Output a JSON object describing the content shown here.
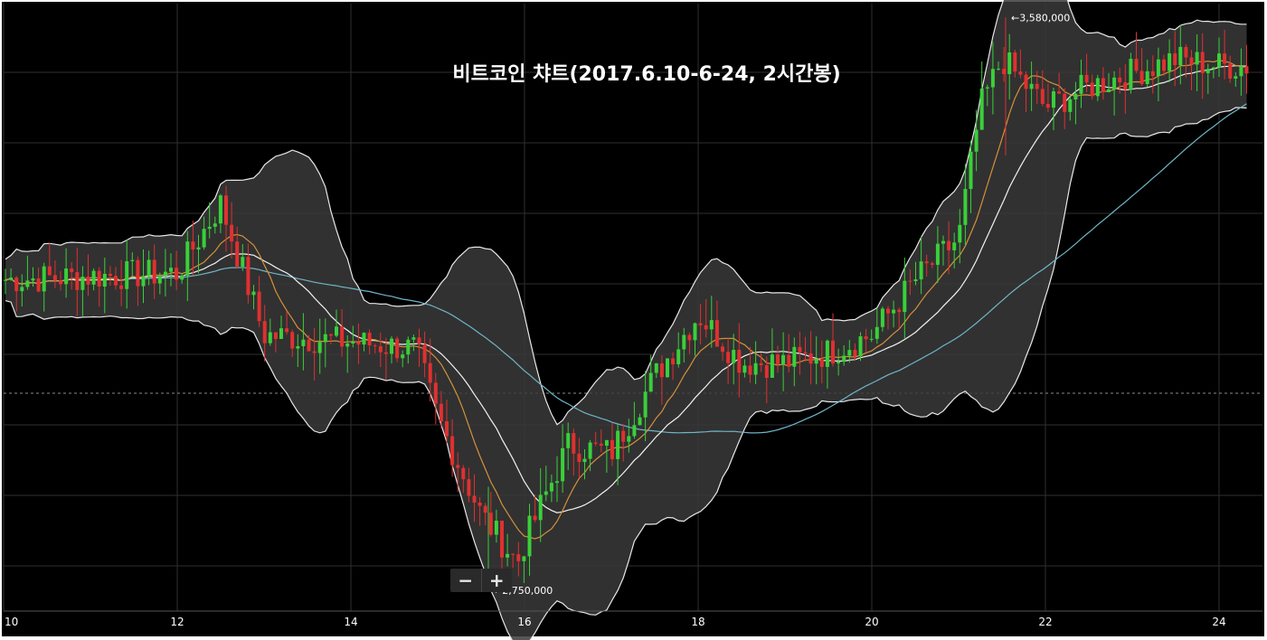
{
  "colors": {
    "background": "#000000",
    "grid": "#2f2f2f",
    "band_fill": "#3a3a3a",
    "band_line": "#e8e8e8",
    "up_candle": "#39d039",
    "down_candle": "#e03030",
    "ma_orange": "#d4913a",
    "ma_white": "#f2f2f2",
    "ma_blue": "#6fb5c8",
    "text": "#ffffff"
  },
  "zoom": {
    "minus_icon": "minus-icon",
    "plus_icon": "plus-icon"
  },
  "chart_data": {
    "type": "candlestick",
    "title": "비트코인 챠트(2017.6.10-6-24, 2시간봉)",
    "x_axis": {
      "ticks": [
        "10",
        "12",
        "14",
        "16",
        "18",
        "20",
        "22",
        "24"
      ],
      "range": [
        "2017-06-10",
        "2017-06-24"
      ]
    },
    "annotations": [
      {
        "label": "←3,580,000",
        "value": 3580000,
        "type": "high"
      },
      {
        "label": "←2,750,000",
        "value": 2750000,
        "type": "low"
      }
    ],
    "y_range_approx": [
      2720000,
      3600000
    ],
    "indicators": [
      "Bollinger Bands",
      "Moving Average (short)",
      "Moving Average (mid)",
      "Moving Average (long)"
    ],
    "grid": true,
    "price_path_approx": [
      {
        "date": "2017-06-10",
        "close": 3200000
      },
      {
        "date": "2017-06-11",
        "close": 3205000
      },
      {
        "date": "2017-06-12",
        "close": 3210000
      },
      {
        "date": "2017-06-12T12:00",
        "close": 3310000
      },
      {
        "date": "2017-06-13",
        "close": 3120000
      },
      {
        "date": "2017-06-14",
        "close": 3110000
      },
      {
        "date": "2017-06-14T18:00",
        "close": 3100000
      },
      {
        "date": "2017-06-15",
        "close": 3000000
      },
      {
        "date": "2017-06-15T12:00",
        "close": 2860000
      },
      {
        "date": "2017-06-15T22:00",
        "close": 2790000
      },
      {
        "date": "2017-06-16",
        "close": 2820000
      },
      {
        "date": "2017-06-16T12:00",
        "close": 2960000
      },
      {
        "date": "2017-06-17",
        "close": 2950000
      },
      {
        "date": "2017-06-17T12:00",
        "close": 3060000
      },
      {
        "date": "2017-06-18",
        "close": 3150000
      },
      {
        "date": "2017-06-18T12:00",
        "close": 3080000
      },
      {
        "date": "2017-06-19",
        "close": 3080000
      },
      {
        "date": "2017-06-19T12:00",
        "close": 3095000
      },
      {
        "date": "2017-06-20",
        "close": 3120000
      },
      {
        "date": "2017-06-20T12:00",
        "close": 3200000
      },
      {
        "date": "2017-06-21",
        "close": 3260000
      },
      {
        "date": "2017-06-21T06:00",
        "close": 3450000
      },
      {
        "date": "2017-06-21T12:00",
        "close": 3520000
      },
      {
        "date": "2017-06-22",
        "close": 3450000
      },
      {
        "date": "2017-06-22T12:00",
        "close": 3480000
      },
      {
        "date": "2017-06-23",
        "close": 3500000
      },
      {
        "date": "2017-06-23T12:00",
        "close": 3520000
      },
      {
        "date": "2017-06-24",
        "close": 3510000
      }
    ]
  }
}
